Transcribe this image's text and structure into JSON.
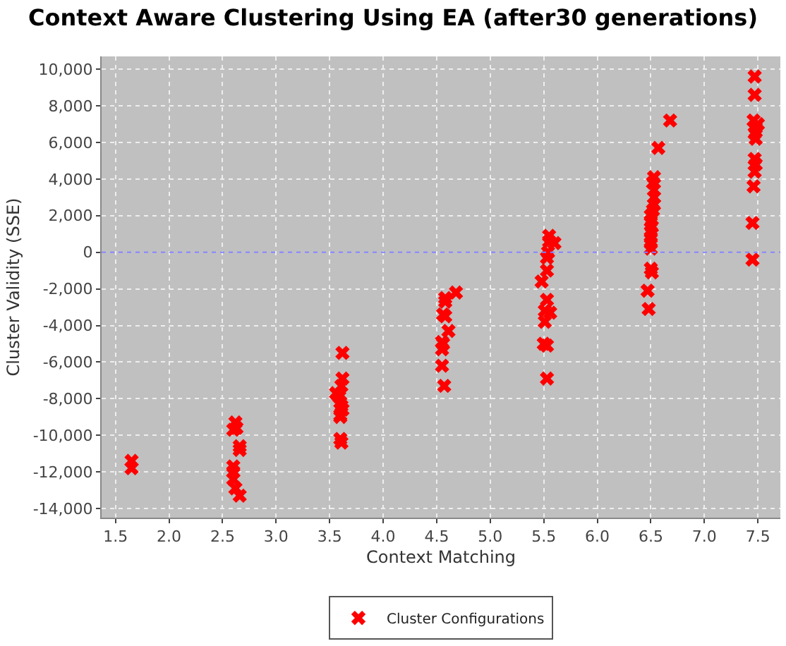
{
  "chart_data": {
    "type": "scatter",
    "title": "Context Aware Clustering Using EA (after30 generations)",
    "xlabel": "Context Matching",
    "ylabel": "Cluster Validity (SSE)",
    "xlim": [
      1.37,
      7.71
    ],
    "xticks": [
      {
        "value": 1.5,
        "label": "1.5"
      },
      {
        "value": 2,
        "label": "2.0"
      },
      {
        "value": 2.5,
        "label": "2.5"
      },
      {
        "value": 3,
        "label": "3.0"
      },
      {
        "value": 3.5,
        "label": "3.5"
      },
      {
        "value": 4,
        "label": "4.0"
      },
      {
        "value": 4.5,
        "label": "4.5"
      },
      {
        "value": 5,
        "label": "5.0"
      },
      {
        "value": 5.5,
        "label": "5.5"
      },
      {
        "value": 6,
        "label": "6.0"
      },
      {
        "value": 6.5,
        "label": "6.5"
      },
      {
        "value": 7,
        "label": "7.0"
      },
      {
        "value": 7.5,
        "label": "7.5"
      }
    ],
    "ylim": [
      -14500,
      10700
    ],
    "yticks": [
      {
        "value": -14000,
        "label": "-14,000"
      },
      {
        "value": -12000,
        "label": "-12,000"
      },
      {
        "value": -10000,
        "label": "-10,000"
      },
      {
        "value": -8000,
        "label": "-8,000"
      },
      {
        "value": -6000,
        "label": "-6,000"
      },
      {
        "value": -4000,
        "label": "-4,000"
      },
      {
        "value": -2000,
        "label": "-2,000"
      },
      {
        "value": 0,
        "label": "0"
      },
      {
        "value": 2000,
        "label": "2,000"
      },
      {
        "value": 4000,
        "label": "4,000"
      },
      {
        "value": 6000,
        "label": "6,000"
      },
      {
        "value": 8000,
        "label": "8,000"
      },
      {
        "value": 10000,
        "label": "10,000"
      }
    ],
    "grid": true,
    "legend": "bottom",
    "marker": "cross",
    "ref_lines": [
      {
        "axis": "y",
        "value": 0,
        "color": "#8080ff",
        "line_style": "dotted"
      }
    ],
    "series": [
      {
        "name": "Cluster Configurations",
        "color": "#ff0000",
        "x": [
          1.65,
          1.65,
          2.62,
          2.6,
          2.63,
          2.66,
          2.66,
          2.6,
          2.6,
          2.6,
          2.62,
          2.66,
          3.62,
          3.62,
          3.61,
          3.56,
          3.59,
          3.6,
          3.61,
          3.62,
          3.6,
          3.6,
          3.6,
          3.61,
          4.68,
          4.58,
          4.58,
          4.56,
          4.58,
          4.61,
          4.55,
          4.56,
          4.55,
          4.55,
          4.57,
          5.55,
          5.55,
          5.6,
          5.54,
          5.53,
          5.53,
          5.48,
          5.53,
          5.51,
          5.56,
          5.51,
          5.5,
          5.53,
          5.53,
          6.68,
          6.57,
          6.53,
          6.52,
          6.53,
          6.53,
          6.53,
          6.52,
          6.5,
          6.5,
          6.51,
          6.5,
          6.5,
          6.5,
          6.5,
          6.5,
          6.51,
          6.47,
          6.48,
          7.47,
          7.47,
          7.46,
          7.5,
          7.48,
          7.47,
          7.48,
          7.47,
          7.48,
          7.47,
          7.46,
          7.45,
          7.45
        ],
        "values": [
          -11400,
          -11800,
          -9300,
          -9700,
          -9600,
          -10600,
          -10800,
          -11700,
          -12000,
          -12400,
          -12900,
          -13300,
          -5500,
          -6900,
          -7300,
          -7700,
          -7900,
          -8200,
          -8400,
          -8600,
          -8900,
          -9000,
          -10200,
          -10400,
          -2200,
          -2500,
          -2700,
          -3400,
          -3500,
          -4300,
          -4900,
          -5000,
          -5300,
          -6200,
          -7300,
          900,
          600,
          500,
          0,
          -300,
          -1000,
          -1600,
          -2600,
          -3200,
          -3300,
          -3800,
          -5000,
          -5100,
          -6900,
          7200,
          5700,
          4100,
          3800,
          3400,
          3000,
          2600,
          2300,
          2000,
          1700,
          1400,
          1100,
          800,
          500,
          200,
          -900,
          -1100,
          -2100,
          -3100,
          9600,
          8600,
          7200,
          7000,
          6800,
          6500,
          6200,
          5100,
          4800,
          4400,
          3600,
          1600,
          -400
        ]
      }
    ]
  }
}
